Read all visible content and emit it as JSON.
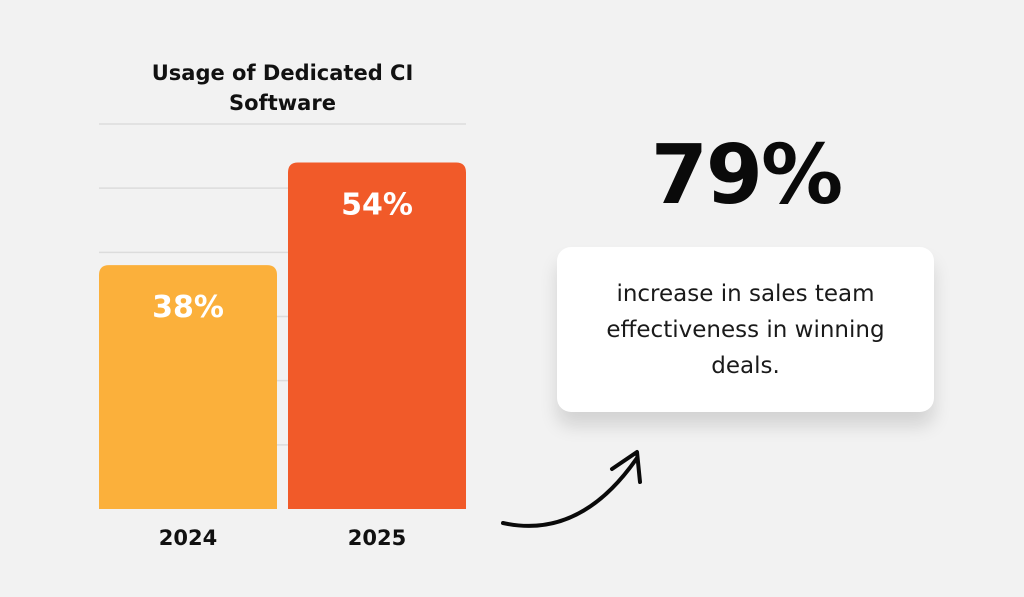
{
  "chart_data": {
    "type": "bar",
    "title": "Usage of Dedicated CI Software",
    "categories": [
      "2024",
      "2025"
    ],
    "values": [
      38,
      54
    ],
    "data_labels": [
      "38%",
      "54%"
    ],
    "ylim": [
      0,
      60
    ],
    "grid": true,
    "y_gridline_step": 10,
    "colors": [
      "#fbb03b",
      "#f15a29"
    ]
  },
  "stat": {
    "value": "79%",
    "description": "increase in sales team effectiveness in winning deals."
  },
  "colors": {
    "background": "#f2f2f2",
    "card": "#ffffff",
    "text": "#111111"
  }
}
